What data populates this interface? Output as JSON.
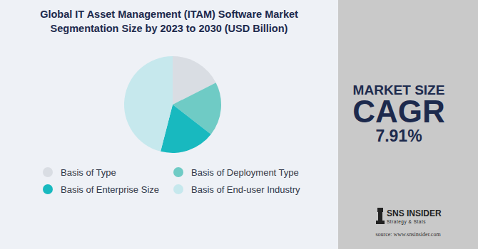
{
  "chart_data": {
    "type": "pie",
    "title": "Global IT Asset Management (ITAM) Software Market Segmentation Size by 2023 to 2030 (USD Billion)",
    "categories": [
      "Basis of Type",
      "Basis of Deployment Type",
      "Basis of Enterprise Size",
      "Basis of End-user Industry"
    ],
    "values": [
      17.5,
      18,
      18.5,
      46
    ],
    "colors": [
      "#d9dde3",
      "#6fcbc5",
      "#18b9bf",
      "#c6e8ed"
    ],
    "legend": "bottom"
  },
  "panel": {
    "heading": "MARKET SIZE",
    "metric": "CAGR",
    "value": "7.91%"
  },
  "logo": {
    "name": "SNS INSIDER",
    "tagline": "Strategy & Stats",
    "source": "source: www.snsinsider.com"
  }
}
